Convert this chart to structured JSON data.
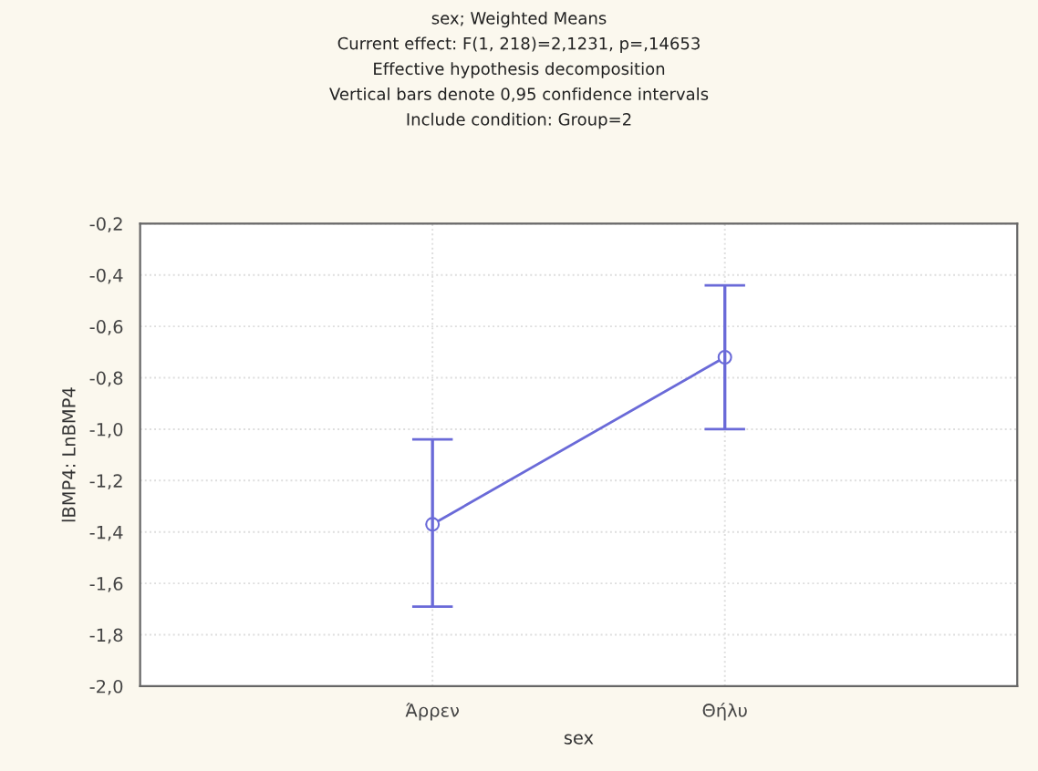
{
  "chart_data": {
    "type": "line",
    "title": "sex; Weighted Means\nCurrent effect: F(1, 218)=2,1231, p=,14653\nEffective hypothesis decomposition\nVertical bars denote 0,95 confidence intervals\nInclude condition: Group=2",
    "xlabel": "sex",
    "ylabel": "lBMP4: LnBMP4",
    "categories": [
      "Άρρεν",
      "Θήλυ"
    ],
    "series": [
      {
        "color": "#6a6ad8",
        "values": [
          -1.37,
          -0.72
        ],
        "errors": [
          [
            -1.69,
            -1.04
          ],
          [
            -1.0,
            -0.44
          ]
        ]
      }
    ],
    "ylim": [
      -2.0,
      -0.2
    ],
    "yticks": [
      {
        "value": -2.0,
        "label": "-2,0"
      },
      {
        "value": -1.8,
        "label": "-1,8"
      },
      {
        "value": -1.6,
        "label": "-1,6"
      },
      {
        "value": -1.4,
        "label": "-1,4"
      },
      {
        "value": -1.2,
        "label": "-1,2"
      },
      {
        "value": -1.0,
        "label": "-1,0"
      },
      {
        "value": -0.8,
        "label": "-0,8"
      },
      {
        "value": -0.6,
        "label": "-0,6"
      },
      {
        "value": -0.4,
        "label": "-0,4"
      },
      {
        "value": -0.2,
        "label": "-0,2"
      }
    ],
    "grid": true,
    "marker": "circle",
    "line_style": "solid"
  }
}
